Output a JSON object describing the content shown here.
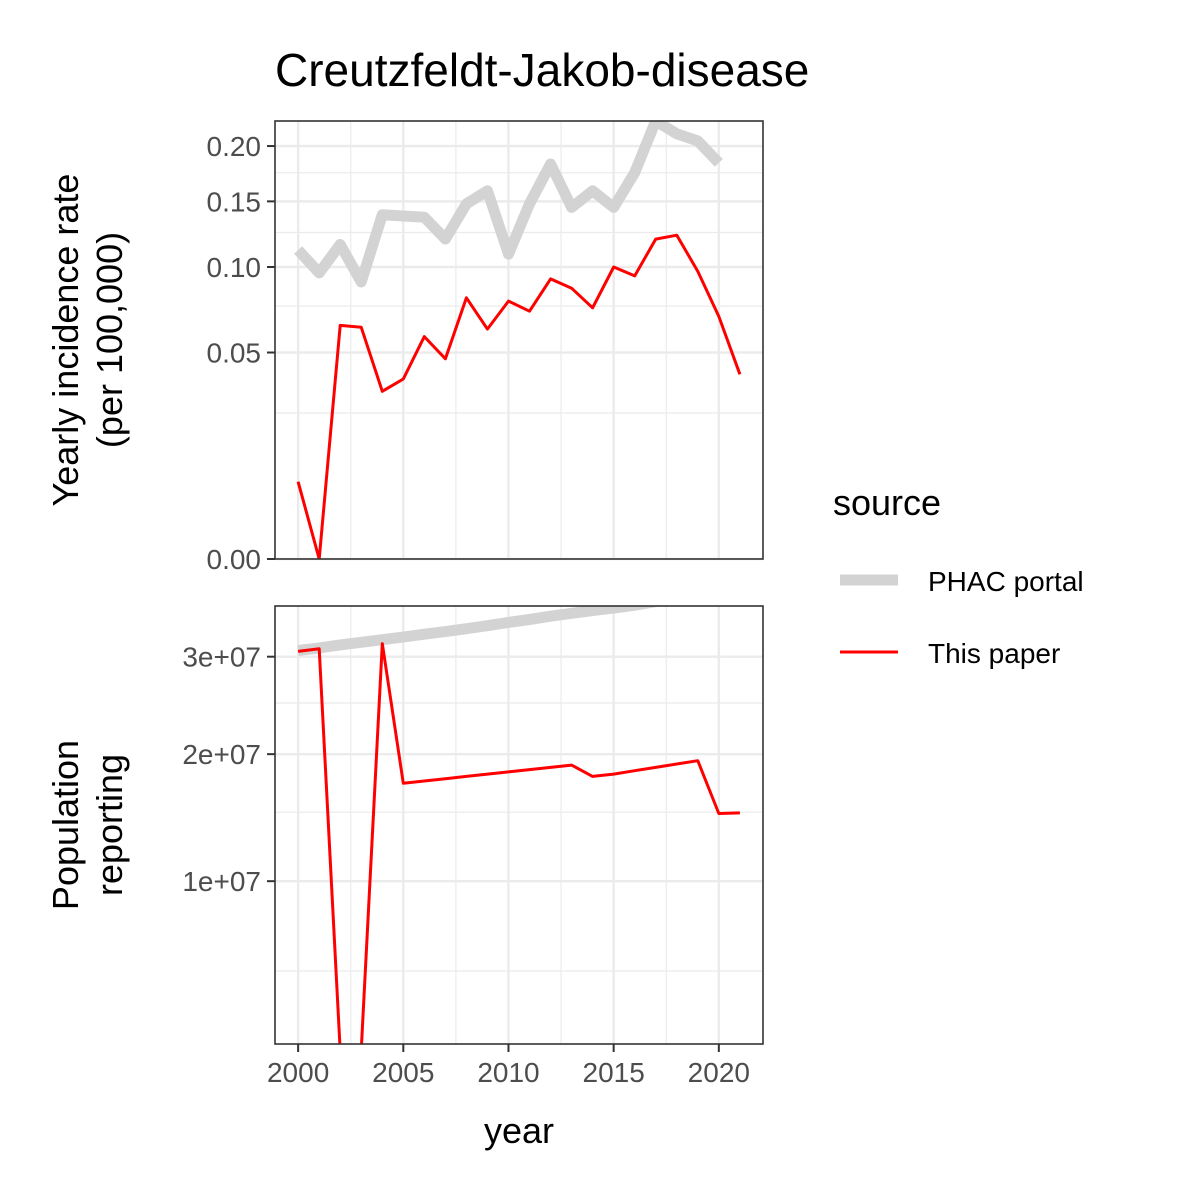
{
  "chart_data": {
    "type": "line",
    "title": "Creutzfeldt-Jakob-disease",
    "xlabel": "year",
    "x_ticks": [
      "2000",
      "2005",
      "2010",
      "2015",
      "2020"
    ],
    "legend": {
      "title": "source",
      "position": "right",
      "entries": [
        {
          "name": "PHAC portal",
          "color": "#d3d3d3"
        },
        {
          "name": "This paper",
          "color": "#ff0000"
        }
      ]
    },
    "panels": [
      {
        "ylabel": [
          "Yearly incidence rate",
          "(per 100,000)"
        ],
        "y_scale": "sqrt",
        "ylim": [
          0,
          0.225
        ],
        "y_ticks": [
          {
            "value": 0,
            "label": "0.00"
          },
          {
            "value": 0.05,
            "label": "0.05"
          },
          {
            "value": 0.1,
            "label": "0.10"
          },
          {
            "value": 0.15,
            "label": "0.15"
          },
          {
            "value": 0.2,
            "label": "0.20"
          }
        ],
        "y_minor": [
          0.025,
          0.075,
          0.125,
          0.175
        ],
        "series": [
          {
            "name": "PHAC portal",
            "color": "#d3d3d3",
            "x": [
              2000,
              2001,
              2002,
              2003,
              2004,
              2005,
              2006,
              2007,
              2008,
              2009,
              2010,
              2011,
              2012,
              2013,
              2014,
              2015,
              2016,
              2017,
              2018,
              2019,
              2020
            ],
            "y": [
              0.112,
              0.096,
              0.116,
              0.09,
              0.139,
              0.138,
              0.137,
              0.12,
              0.148,
              0.159,
              0.109,
              0.148,
              0.183,
              0.145,
              0.159,
              0.145,
              0.175,
              0.225,
              0.212,
              0.205,
              0.184
            ]
          },
          {
            "name": "This paper",
            "color": "#ff0000",
            "x": [
              2000,
              2001,
              2002,
              2003,
              2004,
              2005,
              2006,
              2007,
              2008,
              2009,
              2010,
              2011,
              2012,
              2013,
              2014,
              2015,
              2016,
              2017,
              2018,
              2019,
              2020,
              2021
            ],
            "y": [
              0.007,
              0.0,
              0.064,
              0.063,
              0.033,
              0.038,
              0.058,
              0.047,
              0.08,
              0.062,
              0.078,
              0.072,
              0.092,
              0.086,
              0.074,
              0.1,
              0.094,
              0.12,
              0.123,
              0.097,
              0.069,
              0.04
            ]
          }
        ]
      },
      {
        "ylabel": [
          "Population",
          "reporting"
        ],
        "y_scale": "sqrt",
        "ylim": [
          2200000,
          36000000
        ],
        "y_ticks": [
          {
            "value": 10000000,
            "label": "1e+07"
          },
          {
            "value": 20000000,
            "label": "2e+07"
          },
          {
            "value": 30000000,
            "label": "3e+07"
          }
        ],
        "y_minor": [
          5000000,
          15000000,
          25000000
        ],
        "series": [
          {
            "name": "PHAC portal",
            "color": "#d3d3d3",
            "x": [
              2000,
              2001,
              2002,
              2003,
              2004,
              2005,
              2006,
              2007,
              2008,
              2009,
              2010,
              2011,
              2012,
              2013,
              2014,
              2015,
              2016,
              2017,
              2018,
              2019,
              2020
            ],
            "y": [
              30700000,
              31000000,
              31350000,
              31650000,
              31950000,
              32250000,
              32600000,
              32900000,
              33250000,
              33600000,
              34000000,
              34350000,
              34750000,
              35100000,
              35450000,
              35750000,
              36100000,
              36550000,
              37050000,
              37600000,
              38000000
            ]
          },
          {
            "name": "This paper",
            "color": "#ff0000",
            "x": [
              2000,
              2001,
              2002,
              2003,
              2004,
              2005,
              2006,
              2007,
              2008,
              2009,
              2010,
              2011,
              2012,
              2013,
              2014,
              2015,
              2016,
              2017,
              2018,
              2019,
              2020,
              2021
            ],
            "y": [
              30600000,
              30900000,
              2000000,
              2000000,
              31500000,
              17400000,
              17600000,
              17800000,
              18000000,
              18200000,
              18400000,
              18600000,
              18800000,
              19000000,
              18000000,
              18200000,
              18500000,
              18800000,
              19100000,
              19400000,
              14900000,
              14950000
            ]
          }
        ]
      }
    ]
  }
}
